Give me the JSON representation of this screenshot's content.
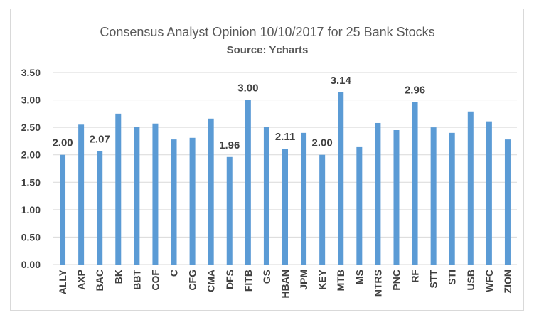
{
  "chart_data": {
    "type": "bar",
    "title": "Consensus Analyst Opinion 10/10/2017 for 25 Bank Stocks",
    "subtitle": "Source: Ycharts",
    "categories": [
      "ALLY",
      "AXP",
      "BAC",
      "BK",
      "BBT",
      "COF",
      "C",
      "CFG",
      "CMA",
      "DFS",
      "FITB",
      "GS",
      "HBAN",
      "JPM",
      "KEY",
      "MTB",
      "MS",
      "NTRS",
      "PNC",
      "RF",
      "STT",
      "STI",
      "USB",
      "WFC",
      "ZION"
    ],
    "values": [
      2.0,
      2.55,
      2.07,
      2.75,
      2.51,
      2.57,
      2.28,
      2.31,
      2.66,
      1.96,
      3.0,
      2.51,
      2.11,
      2.4,
      2.0,
      3.14,
      2.14,
      2.58,
      2.45,
      2.96,
      2.5,
      2.4,
      2.79,
      2.61,
      2.28
    ],
    "data_labels": {
      "ALLY": "2.00",
      "BAC": "2.07",
      "DFS": "1.96",
      "FITB": "3.00",
      "HBAN": "2.11",
      "KEY": "2.00",
      "MTB": "3.14",
      "RF": "2.96"
    },
    "yticks": [
      "0.00",
      "0.50",
      "1.00",
      "1.50",
      "2.00",
      "2.50",
      "3.00",
      "3.50"
    ],
    "ylim": [
      0,
      3.5
    ],
    "bar_color": "#5b9bd5",
    "grid_color": "#d9d9d9",
    "grid": true,
    "legend": "none"
  }
}
